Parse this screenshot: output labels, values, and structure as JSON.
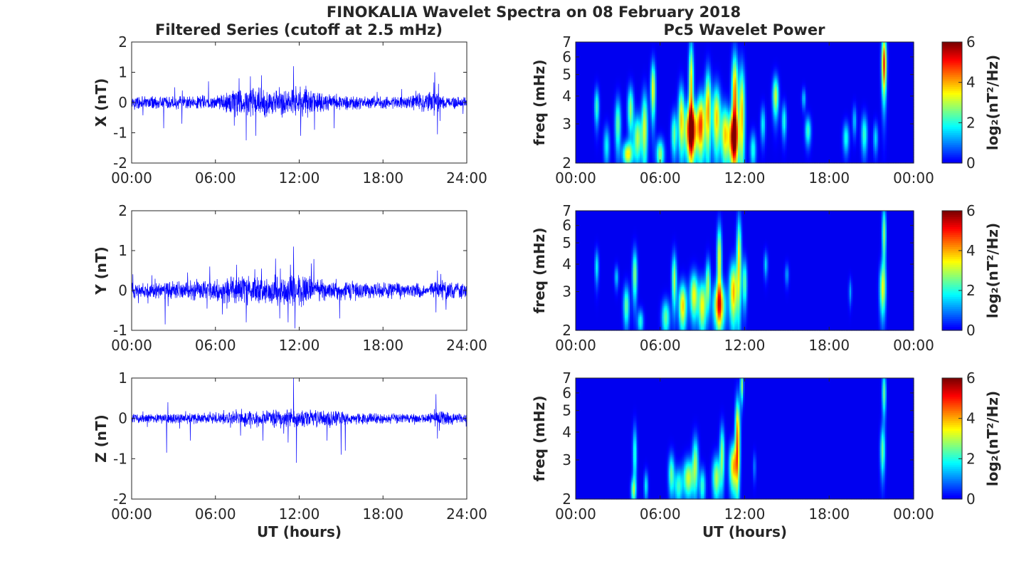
{
  "figure": {
    "title": "FINOKALIA Wavelet Spectra on 08 February 2018",
    "left_title": "Filtered Series (cutoff at 2.5 mHz)",
    "right_title": "Pc5 Wavelet Power"
  },
  "chart_data": [
    {
      "type": "line",
      "component": "X",
      "ylabel": "X (nT)",
      "xlabel": "",
      "xlim": [
        0,
        24
      ],
      "ylim": [
        -2,
        2
      ],
      "yticks": [
        -2,
        -1,
        0,
        1,
        2
      ],
      "xticks": [
        0,
        6,
        12,
        18,
        24
      ],
      "xticklabels": [
        "00:00",
        "06:00",
        "12:00",
        "18:00",
        "24:00"
      ],
      "line_color": "#0000ff",
      "noise_amplitude": 0.12,
      "peaks": [
        [
          2.3,
          -0.85
        ],
        [
          3.6,
          -0.7
        ],
        [
          5.5,
          0.7
        ],
        [
          7.7,
          0.8
        ],
        [
          8.2,
          -1.25
        ],
        [
          8.9,
          -1.1
        ],
        [
          9.3,
          0.9
        ],
        [
          11.6,
          1.2
        ],
        [
          12.1,
          -1.1
        ],
        [
          13.1,
          -0.9
        ],
        [
          14.5,
          -0.85
        ],
        [
          21.7,
          1.0
        ],
        [
          21.9,
          -1.05
        ]
      ],
      "envelope": [
        [
          0,
          1
        ],
        [
          6,
          1.3
        ],
        [
          7.5,
          2.5
        ],
        [
          12.5,
          2.6
        ],
        [
          14,
          1.3
        ],
        [
          19,
          1
        ],
        [
          21.5,
          1.8
        ],
        [
          22.5,
          1.2
        ],
        [
          24,
          1
        ]
      ]
    },
    {
      "type": "heatmap",
      "component": "X",
      "ylabel": "freq (mHz)",
      "xlabel": "",
      "xlim": [
        0,
        24
      ],
      "ylim": [
        2,
        7
      ],
      "yscale": "log",
      "yticks": [
        2,
        3,
        4,
        5,
        6,
        7
      ],
      "xticks": [
        0,
        6,
        12,
        18,
        24
      ],
      "xticklabels": [
        "00:00",
        "06:00",
        "12:00",
        "18:00",
        "00:00"
      ],
      "colorbar": {
        "label": "log₂(nT²/Hz)",
        "min": 0,
        "max": 6,
        "ticks": [
          0,
          2,
          4,
          6
        ],
        "colormap": "jet"
      },
      "blobs": [
        [
          1.5,
          3.6,
          0.12,
          0.5,
          2.2
        ],
        [
          2.2,
          2.4,
          0.15,
          0.35,
          1.8
        ],
        [
          3.0,
          3.0,
          0.15,
          0.6,
          2.5
        ],
        [
          3.7,
          2.2,
          0.25,
          0.2,
          3.5
        ],
        [
          3.9,
          3.5,
          0.15,
          0.6,
          2.8
        ],
        [
          4.4,
          2.6,
          0.2,
          0.45,
          3.0
        ],
        [
          4.9,
          2.9,
          0.15,
          0.8,
          3.2
        ],
        [
          5.5,
          4.3,
          0.12,
          0.9,
          3.5
        ],
        [
          6.0,
          2.2,
          0.2,
          0.25,
          2.8
        ],
        [
          7.0,
          2.7,
          0.15,
          0.45,
          2.5
        ],
        [
          7.5,
          3.2,
          0.15,
          0.8,
          3.5
        ],
        [
          8.2,
          2.8,
          0.3,
          0.55,
          5.8
        ],
        [
          8.2,
          4.5,
          0.12,
          1.6,
          3.8
        ],
        [
          8.9,
          3.0,
          0.2,
          0.7,
          4.5
        ],
        [
          9.4,
          3.5,
          0.15,
          1.1,
          4.0
        ],
        [
          10.0,
          3.2,
          0.2,
          0.8,
          3.8
        ],
        [
          10.6,
          2.7,
          0.2,
          0.6,
          3.5
        ],
        [
          11.2,
          2.6,
          0.25,
          0.5,
          5.0
        ],
        [
          11.3,
          4.0,
          0.15,
          1.4,
          4.5
        ],
        [
          11.8,
          3.4,
          0.15,
          1.3,
          3.8
        ],
        [
          12.6,
          2.3,
          0.15,
          0.3,
          2.0
        ],
        [
          13.3,
          3.0,
          0.12,
          0.4,
          1.8
        ],
        [
          14.2,
          4.0,
          0.15,
          0.6,
          3.2
        ],
        [
          14.8,
          3.1,
          0.12,
          0.4,
          2.0
        ],
        [
          16.2,
          3.9,
          0.1,
          0.3,
          1.5
        ],
        [
          16.5,
          2.8,
          0.15,
          0.3,
          2.2
        ],
        [
          19.2,
          2.6,
          0.15,
          0.3,
          2.0
        ],
        [
          19.8,
          3.1,
          0.1,
          0.35,
          1.5
        ],
        [
          20.5,
          2.7,
          0.15,
          0.4,
          2.2
        ],
        [
          21.3,
          2.6,
          0.12,
          0.3,
          1.6
        ],
        [
          21.9,
          5.6,
          0.12,
          1.3,
          5.0
        ]
      ]
    },
    {
      "type": "line",
      "component": "Y",
      "ylabel": "Y (nT)",
      "xlabel": "",
      "xlim": [
        0,
        24
      ],
      "ylim": [
        -1,
        2
      ],
      "yticks": [
        -1,
        0,
        1,
        2
      ],
      "xticks": [
        0,
        6,
        12,
        18,
        24
      ],
      "xticklabels": [
        "00:00",
        "06:00",
        "12:00",
        "18:00",
        "24:00"
      ],
      "line_color": "#0000ff",
      "noise_amplitude": 0.11,
      "peaks": [
        [
          2.4,
          -0.85
        ],
        [
          4.0,
          0.45
        ],
        [
          5.6,
          0.6
        ],
        [
          6.5,
          -0.6
        ],
        [
          8.2,
          -0.8
        ],
        [
          9.3,
          0.55
        ],
        [
          10.3,
          0.8
        ],
        [
          10.6,
          -0.7
        ],
        [
          11.6,
          1.1
        ],
        [
          11.7,
          -0.95
        ],
        [
          11.2,
          -0.8
        ],
        [
          14.9,
          -0.7
        ],
        [
          21.9,
          0.5
        ],
        [
          21.8,
          -0.55
        ]
      ],
      "envelope": [
        [
          0,
          1
        ],
        [
          5,
          1.4
        ],
        [
          7,
          2
        ],
        [
          12.5,
          2.4
        ],
        [
          14,
          1.4
        ],
        [
          21,
          1
        ],
        [
          22,
          1.5
        ],
        [
          24,
          1
        ]
      ]
    },
    {
      "type": "heatmap",
      "component": "Y",
      "ylabel": "freq (mHz)",
      "xlabel": "",
      "xlim": [
        0,
        24
      ],
      "ylim": [
        2,
        7
      ],
      "yscale": "log",
      "yticks": [
        2,
        3,
        4,
        5,
        6,
        7
      ],
      "xticks": [
        0,
        6,
        12,
        18,
        24
      ],
      "xticklabels": [
        "00:00",
        "06:00",
        "12:00",
        "18:00",
        "00:00"
      ],
      "colorbar": {
        "label": "log₂(nT²/Hz)",
        "min": 0,
        "max": 6,
        "ticks": [
          0,
          2,
          4,
          6
        ],
        "colormap": "jet"
      },
      "blobs": [
        [
          1.5,
          3.9,
          0.1,
          0.5,
          1.8
        ],
        [
          2.9,
          3.5,
          0.1,
          0.3,
          1.5
        ],
        [
          3.6,
          2.6,
          0.15,
          0.4,
          2.5
        ],
        [
          4.2,
          3.6,
          0.12,
          0.7,
          2.8
        ],
        [
          4.6,
          2.2,
          0.15,
          0.2,
          2.0
        ],
        [
          6.4,
          2.3,
          0.2,
          0.3,
          2.5
        ],
        [
          7.0,
          3.4,
          0.12,
          0.7,
          3.0
        ],
        [
          7.6,
          2.6,
          0.2,
          0.45,
          3.8
        ],
        [
          8.4,
          2.9,
          0.2,
          0.5,
          3.5
        ],
        [
          9.0,
          2.6,
          0.2,
          0.5,
          3.5
        ],
        [
          9.4,
          3.3,
          0.12,
          0.6,
          2.8
        ],
        [
          10.2,
          2.6,
          0.3,
          0.45,
          4.2
        ],
        [
          10.2,
          4.2,
          0.12,
          1.2,
          3.5
        ],
        [
          11.2,
          3.0,
          0.2,
          0.7,
          4.0
        ],
        [
          11.6,
          4.2,
          0.12,
          1.5,
          3.5
        ],
        [
          12.0,
          3.3,
          0.12,
          0.6,
          2.5
        ],
        [
          13.5,
          4.0,
          0.1,
          0.4,
          1.5
        ],
        [
          15.0,
          3.6,
          0.1,
          0.3,
          1.2
        ],
        [
          19.5,
          3.0,
          0.08,
          0.3,
          1.2
        ],
        [
          21.8,
          3.1,
          0.15,
          0.6,
          3.2
        ],
        [
          21.9,
          5.5,
          0.1,
          1.2,
          2.8
        ]
      ]
    },
    {
      "type": "line",
      "component": "Z",
      "ylabel": "Z (nT)",
      "xlabel": "UT (hours)",
      "xlim": [
        0,
        24
      ],
      "ylim": [
        -2,
        1
      ],
      "yticks": [
        -2,
        -1,
        0,
        1
      ],
      "xticks": [
        0,
        6,
        12,
        18,
        24
      ],
      "xticklabels": [
        "00:00",
        "06:00",
        "12:00",
        "18:00",
        "24:00"
      ],
      "line_color": "#0000ff",
      "noise_amplitude": 0.07,
      "peaks": [
        [
          2.5,
          -0.85
        ],
        [
          2.6,
          0.4
        ],
        [
          4.2,
          -0.55
        ],
        [
          9.4,
          -0.55
        ],
        [
          11.2,
          -0.6
        ],
        [
          11.6,
          1.0
        ],
        [
          11.8,
          -1.1
        ],
        [
          14.0,
          -0.55
        ],
        [
          15.0,
          -0.9
        ],
        [
          15.3,
          -0.8
        ],
        [
          21.8,
          0.6
        ],
        [
          21.9,
          -0.5
        ]
      ],
      "envelope": [
        [
          0,
          1
        ],
        [
          6,
          1.2
        ],
        [
          8,
          1.8
        ],
        [
          13,
          2
        ],
        [
          16,
          1.3
        ],
        [
          21,
          1
        ],
        [
          22,
          1.6
        ],
        [
          24,
          1
        ]
      ]
    },
    {
      "type": "heatmap",
      "component": "Z",
      "ylabel": "freq (mHz)",
      "xlabel": "UT (hours)",
      "xlim": [
        0,
        24
      ],
      "ylim": [
        2,
        7
      ],
      "yscale": "log",
      "yticks": [
        2,
        3,
        4,
        5,
        6,
        7
      ],
      "xticks": [
        0,
        6,
        12,
        18,
        24
      ],
      "xticklabels": [
        "00:00",
        "06:00",
        "12:00",
        "18:00",
        "00:00"
      ],
      "colorbar": {
        "label": "log₂(nT²/Hz)",
        "min": 0,
        "max": 6,
        "ticks": [
          0,
          2,
          4,
          6
        ],
        "colormap": "jet"
      },
      "blobs": [
        [
          4.1,
          2.2,
          0.12,
          0.2,
          2.5
        ],
        [
          4.2,
          3.2,
          0.1,
          0.7,
          2.2
        ],
        [
          5.0,
          2.3,
          0.1,
          0.25,
          1.8
        ],
        [
          6.8,
          2.6,
          0.15,
          0.4,
          2.5
        ],
        [
          7.3,
          2.3,
          0.2,
          0.3,
          2.2
        ],
        [
          8.0,
          2.5,
          0.25,
          0.35,
          3.2
        ],
        [
          8.5,
          2.9,
          0.15,
          0.6,
          2.8
        ],
        [
          9.0,
          2.3,
          0.15,
          0.3,
          2.2
        ],
        [
          10.0,
          2.5,
          0.2,
          0.4,
          3.0
        ],
        [
          10.4,
          3.2,
          0.12,
          0.7,
          2.8
        ],
        [
          11.2,
          2.8,
          0.2,
          0.5,
          3.8
        ],
        [
          11.5,
          3.8,
          0.12,
          1.2,
          4.5
        ],
        [
          11.8,
          6.5,
          0.08,
          0.8,
          2.8
        ],
        [
          21.8,
          3.3,
          0.12,
          0.6,
          2.5
        ],
        [
          21.9,
          6.0,
          0.1,
          1.0,
          2.5
        ],
        [
          12.7,
          2.8,
          0.08,
          0.3,
          1.0
        ]
      ]
    }
  ]
}
